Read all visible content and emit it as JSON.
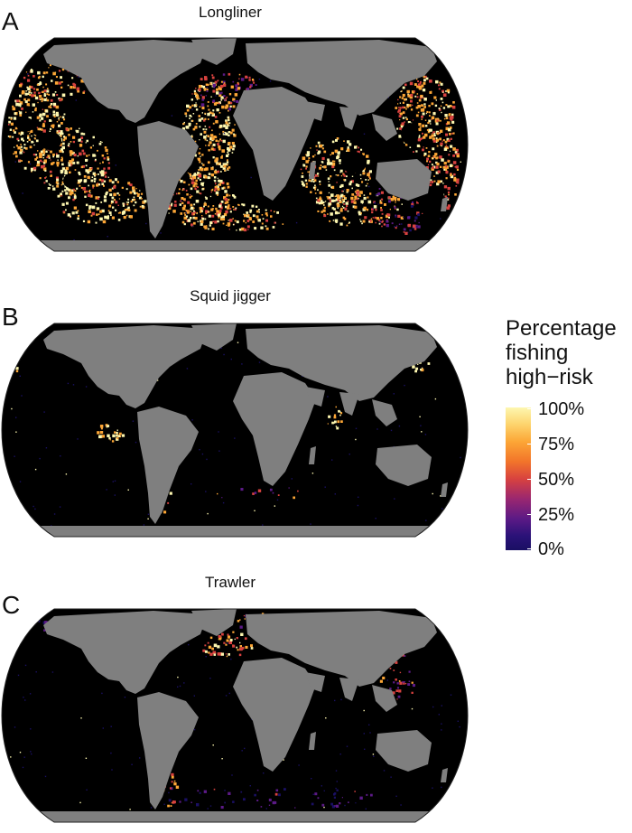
{
  "panels": [
    {
      "letter": "A",
      "title": "Longliner"
    },
    {
      "letter": "B",
      "title": "Squid jigger"
    },
    {
      "letter": "C",
      "title": "Trawler"
    }
  ],
  "legend": {
    "title_lines": [
      "Percentage",
      "fishing",
      "high−risk"
    ],
    "ticks": [
      "100%",
      "75%",
      "50%",
      "25%",
      "0%"
    ],
    "colors": [
      "#1a0f63",
      "#5b1a86",
      "#d8423f",
      "#fca636",
      "#fdf7b0"
    ]
  },
  "colors": {
    "land": "#7f7f7f",
    "ocean": "#000000"
  }
}
